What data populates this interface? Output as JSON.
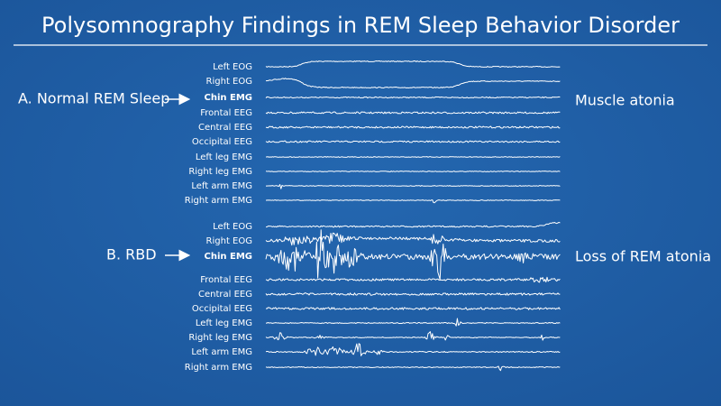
{
  "title": "Polysomnography Findings in REM Sleep Behavior Disorder",
  "panels": [
    {
      "label": "A. Normal REM Sleep",
      "annotation": "Muscle atonia",
      "channels": [
        "Left EOG",
        "Right EOG",
        "Chin EMG",
        "Frontal EEG",
        "Central EEG",
        "Occipital EEG",
        "Left leg EMG",
        "Right leg EMG",
        "Left arm EMG",
        "Right arm EMG"
      ]
    },
    {
      "label": "B. RBD",
      "annotation": "Loss of REM atonia",
      "channels": [
        "Left EOG",
        "Right EOG",
        "Chin EMG",
        "Frontal EEG",
        "Central EEG",
        "Occipital EEG",
        "Left leg EMG",
        "Right leg EMG",
        "Left arm EMG",
        "Right arm EMG"
      ]
    }
  ]
}
